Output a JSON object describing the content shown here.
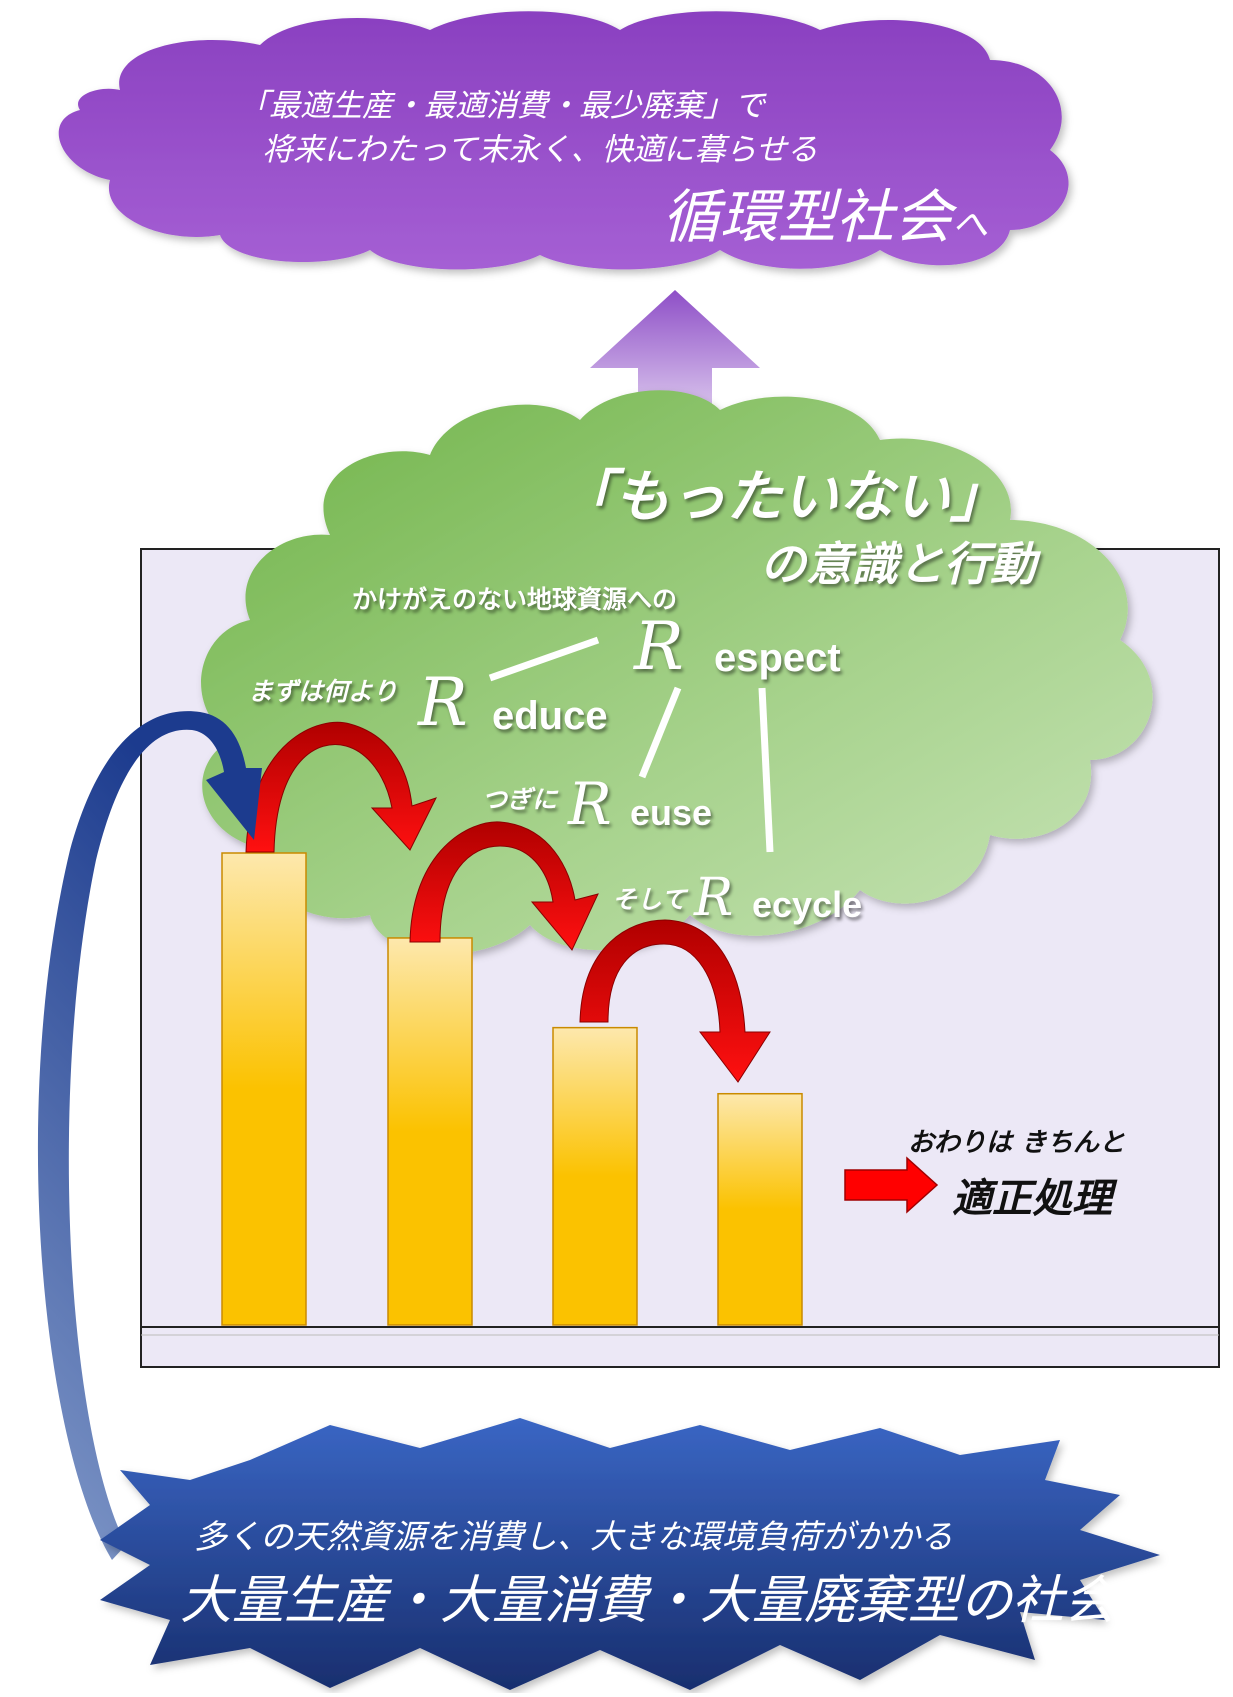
{
  "top_cloud": {
    "line1": "「最適生産・最適消費・最少廃棄」で",
    "line2": "将来にわたって末永く、快適に暮らせる",
    "title": "循環型社会",
    "title_suffix": "へ",
    "color": "#8a48c6"
  },
  "green_cloud": {
    "slogan": "「もったいない」",
    "slogan_sub": "の意識と行動",
    "respect_lead": "かけがえのない地球資源への",
    "color": "#8ec46a"
  },
  "steps": {
    "respect_R": "R",
    "respect_rest": "espect",
    "reduce_lead": "まずは何より",
    "reduce_R": "R",
    "reduce_rest": "educe",
    "reuse_lead": "つぎに",
    "reuse_R": "R",
    "reuse_rest": "euse",
    "recycle_lead": "そして",
    "recycle_R": "R",
    "recycle_rest": "ecycle"
  },
  "final": {
    "lead": "おわりは きちんと",
    "label": "適正処理",
    "arrow_color": "#ff0000"
  },
  "bottom_burst": {
    "line1": "多くの天然資源を消費し、大きな環境負荷がかかる",
    "title": "大量生産・大量消費・大量廃棄型の社会",
    "color": "#1f3d8a"
  },
  "bars": {
    "values": [
      1.0,
      0.82,
      0.63,
      0.49
    ],
    "color_top": "#fde7a8",
    "color_bottom": "#fbbf00"
  }
}
